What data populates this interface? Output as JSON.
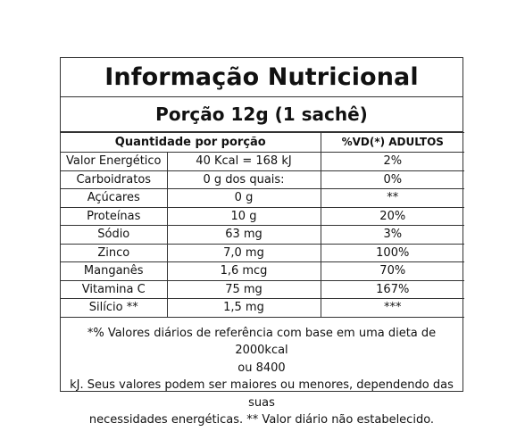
{
  "title": "Informação Nutricional",
  "portion": "Porção 12g (1 sachê)",
  "table": {
    "headers": {
      "quantity": "Quantidade por porção",
      "vd": "%VD(*) ADULTOS"
    },
    "rows": [
      {
        "nutrient": "Valor Energético",
        "amount": "40 Kcal = 168 kJ",
        "vd": "2%"
      },
      {
        "nutrient": "Carboidratos",
        "amount": "0 g dos quais:",
        "vd": "0%"
      },
      {
        "nutrient": "Açúcares",
        "amount": "0 g",
        "vd": "**"
      },
      {
        "nutrient": "Proteínas",
        "amount": "10 g",
        "vd": "20%"
      },
      {
        "nutrient": "Sódio",
        "amount": "63 mg",
        "vd": "3%"
      },
      {
        "nutrient": "Zinco",
        "amount": "7,0 mg",
        "vd": "100%"
      },
      {
        "nutrient": "Manganês",
        "amount": "1,6 mcg",
        "vd": "70%"
      },
      {
        "nutrient": "Vitamina C",
        "amount": "75 mg",
        "vd": "167%"
      },
      {
        "nutrient": "Silício **",
        "amount": "1,5 mg",
        "vd": "***"
      }
    ]
  },
  "footnote": {
    "lines": [
      "*% Valores diários de referência com base em uma dieta de 2000kcal",
      "ou 8400",
      "kJ. Seus valores podem ser maiores ou menores, dependendo das suas",
      "necessidades energéticas. ** Valor diário não estabelecido."
    ]
  }
}
